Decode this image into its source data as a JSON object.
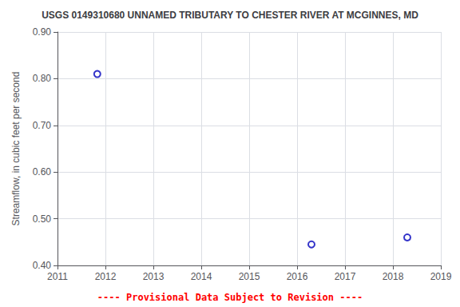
{
  "chart_data": {
    "type": "scatter",
    "title": "USGS 0149310680 UNNAMED TRIBUTARY TO CHESTER RIVER AT MCGINNES, MD",
    "ylabel": "Streamflow, in cubic feet per second",
    "x": [
      2011.83,
      2016.3,
      2018.3
    ],
    "values": [
      0.81,
      0.445,
      0.46
    ],
    "color": "#0000bb",
    "marker": "circle",
    "xlim": [
      2011,
      2019
    ],
    "ylim": [
      0.4,
      0.9
    ],
    "xticks": [
      2011,
      2012,
      2013,
      2014,
      2015,
      2016,
      2017,
      2018,
      2019
    ],
    "yticks": [
      {
        "value": 0.4,
        "label": "0.40"
      },
      {
        "value": 0.5,
        "label": "0.50"
      },
      {
        "value": 0.6,
        "label": "0.60"
      },
      {
        "value": 0.7,
        "label": "0.70"
      },
      {
        "value": 0.8,
        "label": "0.80"
      },
      {
        "value": 0.9,
        "label": "0.90"
      }
    ],
    "grid": true,
    "annotations": [
      {
        "text": "---- Provisional Data Subject to Revision ----",
        "color": "#ff0000"
      }
    ]
  }
}
